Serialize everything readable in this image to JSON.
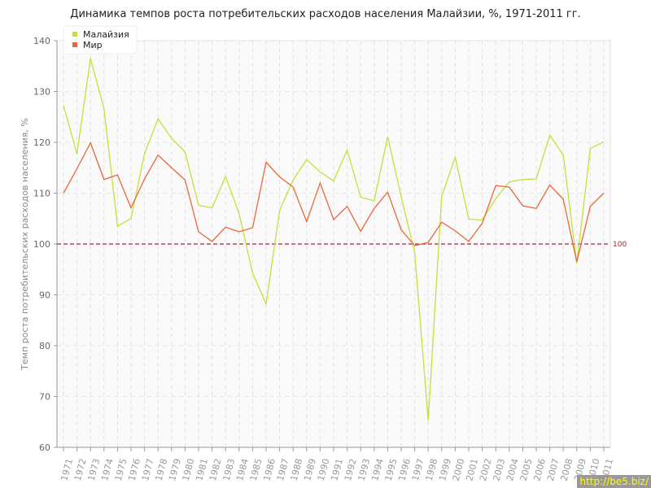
{
  "chart_data": {
    "type": "line",
    "title": "Динамика темпов роста потребительских расходов населения Малайзии, %, 1971-2011 гг.",
    "xlabel": "",
    "ylabel": "Темп роста потребительских расходов населения, %",
    "ylim": [
      60,
      140
    ],
    "yticks": [
      60,
      70,
      80,
      90,
      100,
      110,
      120,
      130,
      140
    ],
    "grid": true,
    "legend": "top-left",
    "reference_line": {
      "value": 100,
      "label": "100",
      "color": "#a0283c"
    },
    "x": [
      "1971",
      "1972",
      "1973",
      "1974",
      "1975",
      "1976",
      "1977",
      "1978",
      "1979",
      "1980",
      "1981",
      "1982",
      "1983",
      "1984",
      "1985",
      "1986",
      "1987",
      "1988",
      "1989",
      "1990",
      "1991",
      "1992",
      "1993",
      "1994",
      "1995",
      "1996",
      "1997",
      "1998",
      "1999",
      "2000",
      "2001",
      "2002",
      "2003",
      "2004",
      "2005",
      "2006",
      "2007",
      "2008",
      "2009",
      "2010",
      "2011"
    ],
    "series": [
      {
        "name": "Малайзия",
        "color": "#c5e03a",
        "values": [
          127.3,
          117.7,
          136.5,
          126.6,
          103.5,
          105.0,
          117.8,
          124.6,
          120.8,
          118.1,
          107.6,
          107.1,
          113.3,
          106.0,
          94.3,
          88.2,
          106.6,
          112.6,
          116.6,
          114.2,
          112.4,
          118.5,
          109.2,
          108.5,
          121.1,
          109.3,
          98.3,
          65.3,
          109.4,
          117.1,
          104.9,
          104.7,
          108.9,
          112.2,
          112.7,
          112.8,
          121.4,
          117.5,
          96.1,
          118.8,
          120.1
        ]
      },
      {
        "name": "Мир",
        "color": "#e8683a",
        "values": [
          110.0,
          114.8,
          119.9,
          112.7,
          113.6,
          107.1,
          112.8,
          117.5,
          115.0,
          112.6,
          102.4,
          100.5,
          103.3,
          102.4,
          103.2,
          116.1,
          113.2,
          111.2,
          104.4,
          112.0,
          104.8,
          107.4,
          102.5,
          107.0,
          110.2,
          102.8,
          99.7,
          100.3,
          104.3,
          102.6,
          100.5,
          104.1,
          111.5,
          111.2,
          107.5,
          107.0,
          111.6,
          108.8,
          96.5,
          107.4,
          110.0
        ]
      }
    ]
  },
  "watermark": "http://be5.biz/"
}
